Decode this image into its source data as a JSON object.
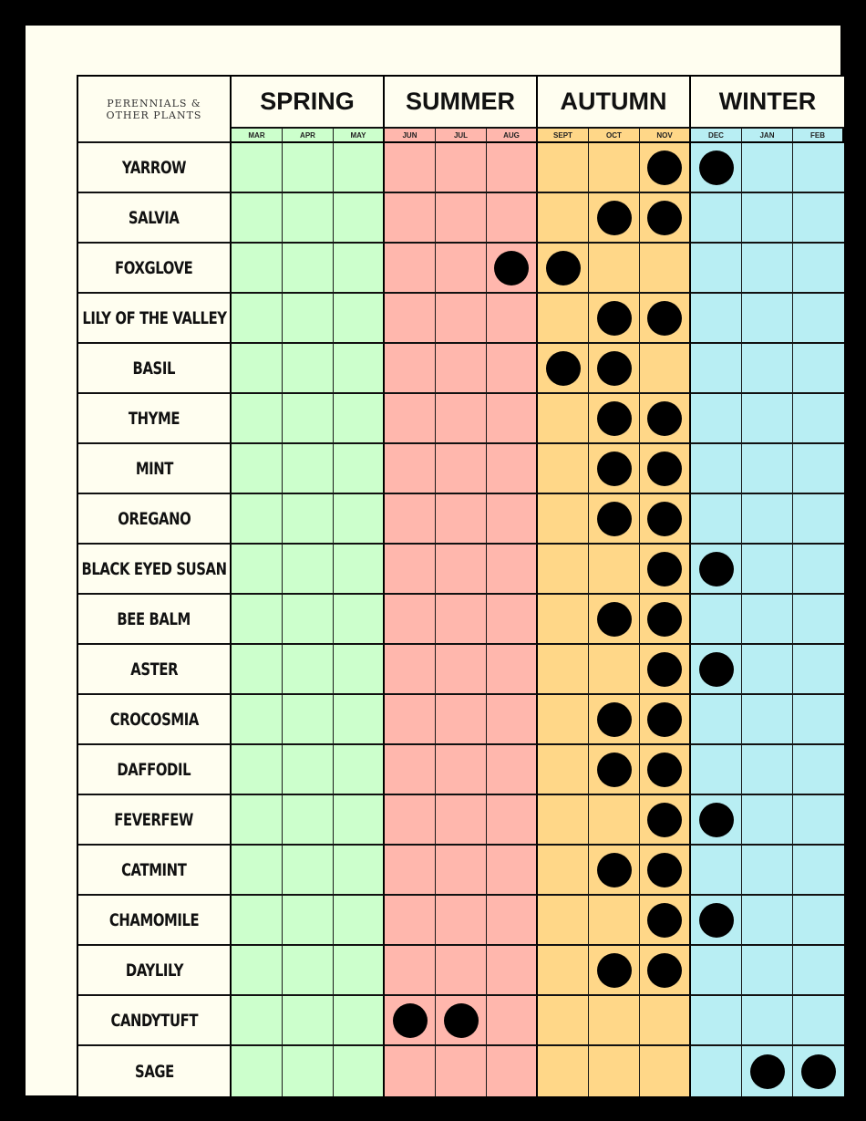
{
  "header_label_lines": [
    "Perennials &",
    "Other Plants"
  ],
  "seasons": [
    {
      "name": "SPRING",
      "color": "#ccffcc",
      "months": [
        "MAR",
        "APR",
        "MAY"
      ]
    },
    {
      "name": "SUMMER",
      "color": "#ffb7ad",
      "months": [
        "JUN",
        "JUL",
        "AUG"
      ]
    },
    {
      "name": "AUTUMN",
      "color": "#ffd788",
      "months": [
        "SEPT",
        "OCT",
        "NOV"
      ]
    },
    {
      "name": "WINTER",
      "color": "#b8eef3",
      "months": [
        "DEC",
        "JAN",
        "FEB"
      ]
    }
  ],
  "plants": [
    {
      "name": "YARROW",
      "months": [
        "NOV",
        "DEC"
      ]
    },
    {
      "name": "SALVIA",
      "months": [
        "OCT",
        "NOV"
      ]
    },
    {
      "name": "FOXGLOVE",
      "months": [
        "AUG",
        "SEPT"
      ]
    },
    {
      "name": "LILY OF THE VALLEY",
      "months": [
        "OCT",
        "NOV"
      ]
    },
    {
      "name": "BASIL",
      "months": [
        "SEPT",
        "OCT"
      ]
    },
    {
      "name": "THYME",
      "months": [
        "OCT",
        "NOV"
      ]
    },
    {
      "name": "MINT",
      "months": [
        "OCT",
        "NOV"
      ]
    },
    {
      "name": "OREGANO",
      "months": [
        "OCT",
        "NOV"
      ]
    },
    {
      "name": "BLACK EYED SUSAN",
      "months": [
        "NOV",
        "DEC"
      ]
    },
    {
      "name": "BEE BALM",
      "months": [
        "OCT",
        "NOV"
      ]
    },
    {
      "name": "ASTER",
      "months": [
        "NOV",
        "DEC"
      ]
    },
    {
      "name": "CROCOSMIA",
      "months": [
        "OCT",
        "NOV"
      ]
    },
    {
      "name": "DAFFODIL",
      "months": [
        "OCT",
        "NOV"
      ]
    },
    {
      "name": "FEVERFEW",
      "months": [
        "NOV",
        "DEC"
      ]
    },
    {
      "name": "CATMINT",
      "months": [
        "OCT",
        "NOV"
      ]
    },
    {
      "name": "CHAMOMILE",
      "months": [
        "NOV",
        "DEC"
      ]
    },
    {
      "name": "DAYLILY",
      "months": [
        "OCT",
        "NOV"
      ]
    },
    {
      "name": "CANDYTUFT",
      "months": [
        "JUN",
        "JUL"
      ]
    },
    {
      "name": "SAGE",
      "months": [
        "JAN",
        "FEB"
      ]
    }
  ]
}
